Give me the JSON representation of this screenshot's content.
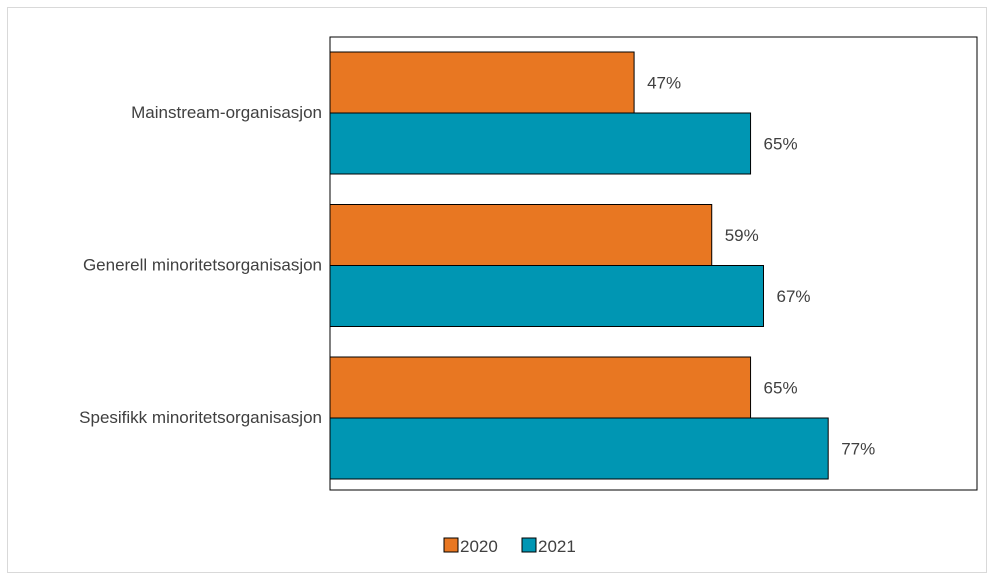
{
  "chart_data": {
    "type": "bar",
    "orientation": "horizontal",
    "categories": [
      "Mainstream-organisasjon",
      "Generell minoritetsorganisasjon",
      "Spesifikk minoritetsorganisasjon"
    ],
    "series": [
      {
        "name": "2020",
        "color": "#e87722",
        "values": [
          47,
          59,
          65
        ],
        "labels": [
          "47%",
          "59%",
          "65%"
        ]
      },
      {
        "name": "2021",
        "color": "#0096b3",
        "values": [
          65,
          67,
          77
        ],
        "labels": [
          "65%",
          "67%",
          "77%"
        ]
      }
    ],
    "unit": "%",
    "xlim": [
      0,
      100
    ],
    "grid": false,
    "legend": "bottom"
  }
}
